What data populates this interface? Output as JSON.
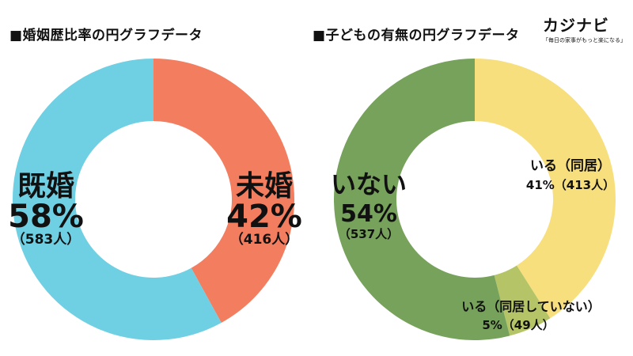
{
  "brand": {
    "logo_text": "カジナビ",
    "tagline": "「毎日の家事がもっと楽になる」"
  },
  "colors": {
    "married": "#6fcfe3",
    "unmarried": "#f27d5f",
    "no_children": "#76a25b",
    "children_cohabiting": "#f7df7e",
    "children_not_cohabiting": "#b5c466"
  },
  "chart_data": [
    {
      "type": "pie",
      "style": "donut",
      "title": "■婚姻歴比率の円グラフデータ",
      "slices": [
        {
          "label": "未婚",
          "percent_text": "42%",
          "count_text": "（416人）",
          "percent": 42,
          "count": 416,
          "color": "#f27d5f"
        },
        {
          "label": "既婚",
          "percent_text": "58%",
          "count_text": "（583人）",
          "percent": 58,
          "count": 583,
          "color": "#6fcfe3"
        }
      ]
    },
    {
      "type": "pie",
      "style": "donut",
      "title": "■子どもの有無の円グラフデータ",
      "slices": [
        {
          "label": "いる（同居）",
          "value_text": "41%（413人）",
          "percent": 41,
          "count": 413,
          "color": "#f7df7e"
        },
        {
          "label": "いる（同居していない）",
          "value_text": "5%（49人）",
          "percent": 5,
          "count": 49,
          "color": "#b5c466"
        },
        {
          "label": "いない",
          "percent_text": "54%",
          "count_text": "（537人）",
          "percent": 54,
          "count": 537,
          "color": "#76a25b"
        }
      ]
    }
  ]
}
